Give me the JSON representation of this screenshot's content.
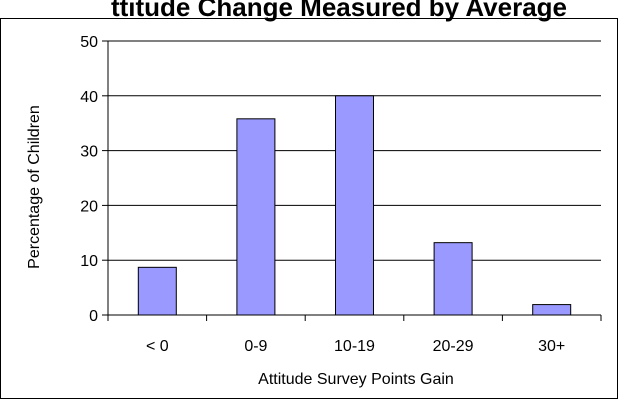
{
  "chart_data": {
    "type": "bar",
    "title": "ttitude Change Measured by Average",
    "xlabel": "Attitude Survey Points Gain",
    "ylabel": "Percentage of Children",
    "categories": [
      "< 0",
      "0-9",
      "10-19",
      "20-29",
      "30+"
    ],
    "values": [
      8.7,
      35.8,
      40.0,
      13.2,
      1.9
    ],
    "ylim": [
      0,
      50
    ],
    "yticks": [
      "0",
      "10",
      "20",
      "30",
      "40",
      "50"
    ],
    "grid": true,
    "legend": "none",
    "colors": {
      "bar_fill": "#9999ff",
      "bar_stroke": "#000000",
      "gridline": "#000000",
      "frame": "#000000"
    }
  }
}
